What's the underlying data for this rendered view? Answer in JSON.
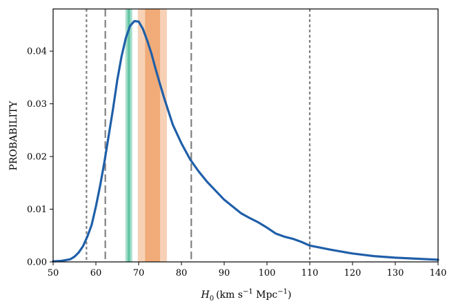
{
  "chart_data": {
    "type": "line",
    "title": "",
    "xlabel": {
      "var": "H",
      "sub": "0",
      "unit_a": "(km s",
      "sup_a": "−1",
      "unit_b": " Mpc",
      "sup_b": "−1",
      "unit_c": ")"
    },
    "ylabel": "PROBABILITY",
    "xlim": [
      50,
      140
    ],
    "ylim": [
      0,
      0.048
    ],
    "xticks": [
      50,
      60,
      70,
      80,
      90,
      100,
      110,
      120,
      130,
      140
    ],
    "xtick_labels": [
      "50",
      "60",
      "70",
      "80",
      "90",
      "100",
      "110",
      "120",
      "130",
      "140"
    ],
    "yticks": [
      0,
      0.01,
      0.02,
      0.03,
      0.04
    ],
    "ytick_labels": [
      "0.00",
      "0.01",
      "0.02",
      "0.03",
      "0.04"
    ],
    "grid": false,
    "legend": "none",
    "series": [
      {
        "color": "#1f5fa8",
        "x": [
          50,
          52,
          54,
          55,
          56,
          57,
          58,
          59,
          60,
          61,
          62,
          63,
          64,
          65,
          66,
          67,
          68,
          69,
          70,
          71,
          72,
          73,
          74,
          75,
          76,
          78,
          80,
          82,
          84,
          86,
          88,
          90,
          92,
          94,
          96,
          98,
          100,
          102,
          104,
          106,
          108,
          110,
          115,
          120,
          125,
          130,
          135,
          140
        ],
        "y": [
          0.0001,
          0.0002,
          0.0005,
          0.001,
          0.0018,
          0.003,
          0.0048,
          0.007,
          0.0105,
          0.0145,
          0.019,
          0.024,
          0.029,
          0.0345,
          0.039,
          0.0425,
          0.0448,
          0.0457,
          0.0456,
          0.0442,
          0.042,
          0.0395,
          0.0365,
          0.0337,
          0.031,
          0.026,
          0.0225,
          0.0195,
          0.0172,
          0.0152,
          0.0135,
          0.0118,
          0.0105,
          0.0092,
          0.0083,
          0.0075,
          0.0065,
          0.0054,
          0.0048,
          0.0044,
          0.0038,
          0.0031,
          0.0023,
          0.0016,
          0.0011,
          0.0008,
          0.0006,
          0.0004
        ]
      }
    ],
    "bands": [
      {
        "x0": 66.9,
        "x1": 68.5,
        "color": "#9fdcc6",
        "opacity": 0.9
      },
      {
        "x0": 67.4,
        "x1": 68.0,
        "color": "#5cc2a0",
        "opacity": 0.9
      },
      {
        "x0": 69.8,
        "x1": 76.6,
        "color": "#f6c9a8",
        "opacity": 0.85
      },
      {
        "x0": 71.5,
        "x1": 75.0,
        "color": "#eea56f",
        "opacity": 0.85
      }
    ],
    "vlines": [
      {
        "x": 57.8,
        "style": "dotted"
      },
      {
        "x": 62.2,
        "style": "dashed"
      },
      {
        "x": 82.3,
        "style": "dashed"
      },
      {
        "x": 110.0,
        "style": "dotted"
      }
    ],
    "colors": {
      "line": "#1f5fa8",
      "vline": "#808080",
      "axis": "#000000"
    }
  }
}
